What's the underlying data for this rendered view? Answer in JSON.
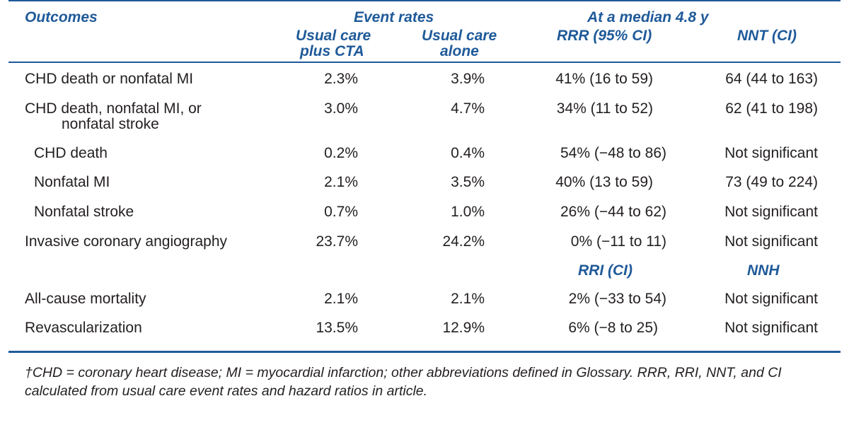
{
  "header": {
    "outcomes": "Outcomes",
    "event_rates": "Event rates",
    "median": "At a median 4.8 y",
    "col_cta": [
      "Usual care",
      "plus CTA"
    ],
    "col_alone": [
      "Usual care",
      "alone"
    ],
    "col_rrr": "RRR (95% CI)",
    "col_nnt": "NNT (CI)"
  },
  "rows": [
    {
      "label": "CHD death or nonfatal MI",
      "cta": "2.3%",
      "alone": "3.9%",
      "rr": "41% (16 to 59)",
      "nn": "64 (44 to 163)"
    },
    {
      "label": "CHD death, nonfatal MI, or",
      "label2": "nonfatal stroke",
      "cta": "3.0%",
      "alone": "4.7%",
      "rr": "34% (11 to 52)",
      "nn": "62 (41 to 198)"
    },
    {
      "label": "CHD death",
      "cta": "0.2%",
      "alone": "0.4%",
      "rr": "54% (−48 to 86)",
      "nn": "Not significant"
    },
    {
      "label": "Nonfatal MI",
      "cta": "2.1%",
      "alone": "3.5%",
      "rr": "40% (13 to 59)",
      "nn": "73 (49 to 224)"
    },
    {
      "label": "Nonfatal stroke",
      "cta": "0.7%",
      "alone": "1.0%",
      "rr": "26% (−44 to 62)",
      "nn": "Not significant"
    },
    {
      "label": "Invasive coronary angiography",
      "cta": "23.7%",
      "alone": "24.2%",
      "rr": "0% (−11 to 11)",
      "nn": "Not significant"
    },
    {
      "label": "All-cause mortality",
      "cta": "2.1%",
      "alone": "2.1%",
      "rr": "2% (−33 to 54)",
      "nn": "Not significant"
    },
    {
      "label": "Revascularization",
      "cta": "13.5%",
      "alone": "12.9%",
      "rr": "6% (−8 to 25)",
      "nn": "Not significant"
    }
  ],
  "subheader": {
    "rri": "RRI (CI)",
    "nnh": "NNH"
  },
  "footnote": "†CHD = coronary heart disease; MI = myocardial infarction; other abbreviations defined in Glossary. RRR, RRI, NNT, and CI calculated from usual care event rates and hazard ratios in article."
}
